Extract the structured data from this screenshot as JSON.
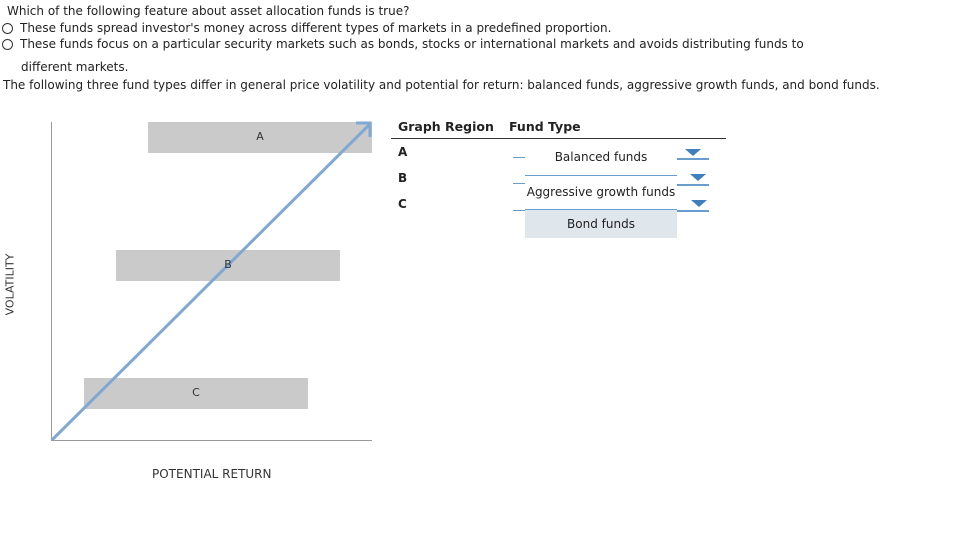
{
  "question": {
    "text": "Which of the following feature about asset allocation funds is true?",
    "options": [
      "These funds spread investor's money across different types of markets in a predefined proportion.",
      "These funds focus on a particular security markets such as bonds, stocks or international markets and avoids distributing funds to",
      "different markets."
    ]
  },
  "instruction": "The following three fund types differ in general price volatility and potential for return: balanced funds, aggressive growth funds, and bond funds.",
  "graph": {
    "y_axis_label": "VOLATILITY",
    "x_axis_label": "POTENTIAL RETURN",
    "regions": [
      "A",
      "B",
      "C"
    ],
    "arrow_color": "#7fa8d4",
    "band_color": "#cacaca"
  },
  "table": {
    "col_region": "Graph Region",
    "col_fund": "Fund Type",
    "rows": [
      "A",
      "B",
      "C"
    ],
    "answers": [
      "Balanced funds",
      "Aggressive growth funds",
      "Bond funds"
    ]
  }
}
